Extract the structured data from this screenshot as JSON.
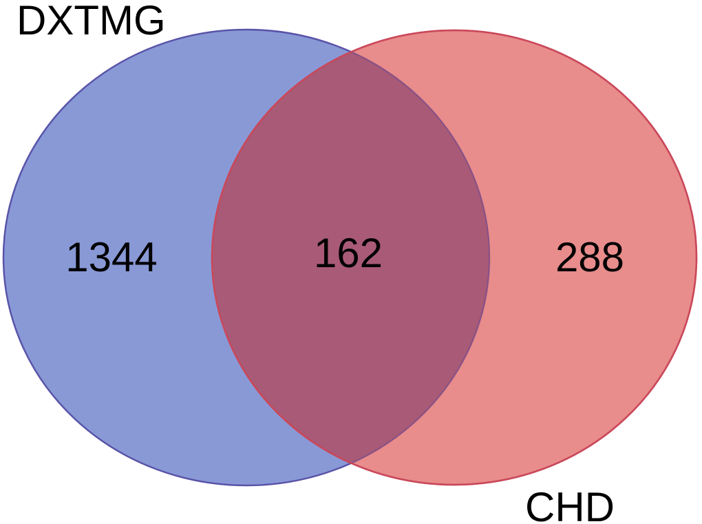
{
  "venn": {
    "sets": [
      {
        "name": "DXTMG",
        "color": "#6b7fcc",
        "border": "#4a5fc0"
      },
      {
        "name": "CHD",
        "color": "#e06666",
        "border": "#d84c57"
      }
    ],
    "counts": {
      "dxtmg_only": "1344",
      "intersection": "162",
      "chd_only": "288"
    },
    "intersection_color": "#a85a77"
  }
}
